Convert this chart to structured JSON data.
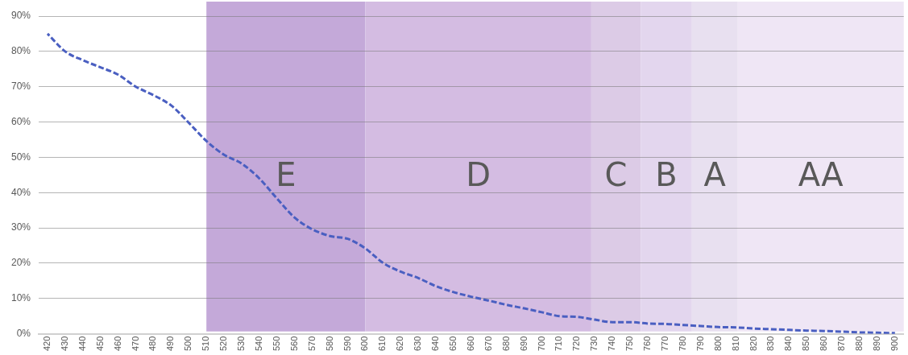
{
  "chart_data": {
    "type": "line",
    "x": [
      420,
      430,
      440,
      450,
      460,
      470,
      480,
      490,
      500,
      510,
      520,
      530,
      540,
      550,
      560,
      570,
      580,
      590,
      600,
      610,
      620,
      630,
      640,
      650,
      660,
      670,
      680,
      690,
      700,
      710,
      720,
      730,
      740,
      750,
      760,
      770,
      780,
      790,
      800,
      810,
      820,
      830,
      840,
      850,
      860,
      870,
      880,
      890,
      900
    ],
    "series": [
      {
        "color": "#4a5fc1",
        "values": [
          85,
          80,
          77.5,
          75.5,
          73.4,
          70,
          67.6,
          64.7,
          59.8,
          54.6,
          50.7,
          48.2,
          44,
          38.3,
          32.9,
          29.6,
          27.7,
          26.9,
          24.2,
          20.1,
          17.6,
          15.8,
          13.5,
          11.8,
          10.5,
          9.4,
          8.2,
          7.2,
          6.1,
          5,
          4.8,
          4,
          3.3,
          3.3,
          2.9,
          2.8,
          2.5,
          2.2,
          1.9,
          1.8,
          1.5,
          1.3,
          1.1,
          0.9,
          0.8,
          0.6,
          0.4,
          0.3,
          0.2
        ]
      }
    ],
    "xlim": [
      415,
      905
    ],
    "xticks": [
      420,
      430,
      440,
      450,
      460,
      470,
      480,
      490,
      500,
      510,
      520,
      530,
      540,
      550,
      560,
      570,
      580,
      590,
      600,
      610,
      620,
      630,
      640,
      650,
      660,
      670,
      680,
      690,
      700,
      710,
      720,
      730,
      740,
      750,
      760,
      770,
      780,
      790,
      800,
      810,
      820,
      830,
      840,
      850,
      860,
      870,
      880,
      890,
      900
    ],
    "ylim": [
      0,
      90
    ],
    "yticks": [
      {
        "value": 0,
        "label": "0%"
      },
      {
        "value": 10,
        "label": "10%"
      },
      {
        "value": 20,
        "label": "20%"
      },
      {
        "value": 30,
        "label": "30%"
      },
      {
        "value": 40,
        "label": "40%"
      },
      {
        "value": 50,
        "label": "50%"
      },
      {
        "value": 60,
        "label": "60%"
      },
      {
        "value": 70,
        "label": "70%"
      },
      {
        "value": 80,
        "label": "80%"
      },
      {
        "value": 90,
        "label": "90%"
      }
    ],
    "bands": [
      {
        "axis": "x",
        "from": 510,
        "to": 600,
        "label": "E",
        "color": "#c4a9d9"
      },
      {
        "axis": "x",
        "from": 600,
        "to": 728,
        "label": "D",
        "color": "#d4bce2"
      },
      {
        "axis": "x",
        "from": 728,
        "to": 756,
        "label": "C",
        "color": "#dccbe6"
      },
      {
        "axis": "x",
        "from": 756,
        "to": 785,
        "label": "B",
        "color": "#e3d6ee"
      },
      {
        "axis": "x",
        "from": 785,
        "to": 811,
        "label": "A",
        "color": "#e8e0f0"
      },
      {
        "axis": "x",
        "from": 811,
        "to": 905,
        "label": "AA",
        "color": "#efe6f5"
      }
    ],
    "grid": "y",
    "legend": false,
    "marker": "none",
    "line_style": "dashed"
  }
}
